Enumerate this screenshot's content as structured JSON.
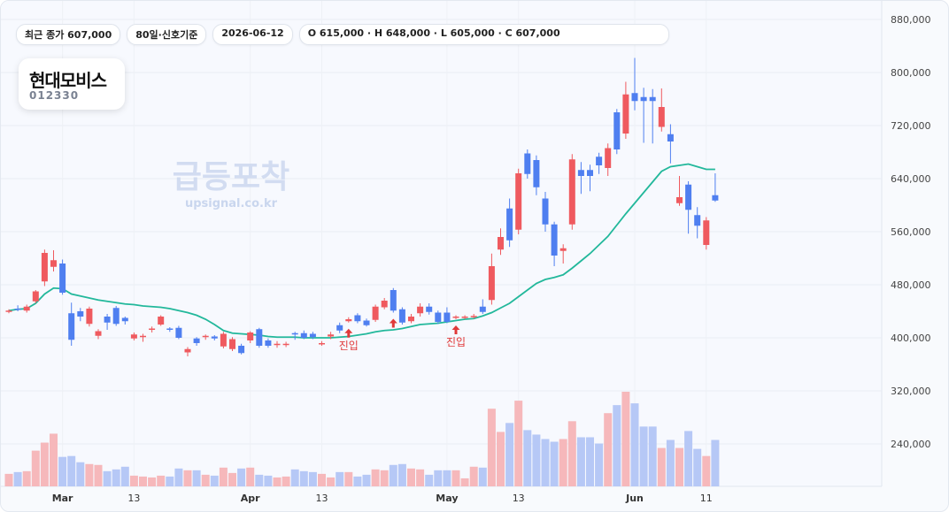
{
  "chips": [
    "최근 종가 607,000",
    "80일·신호기준",
    "2026-06-12",
    "O 615,000 · H 648,000 · L 605,000 · C 607,000"
  ],
  "title": "현대모비스",
  "code": "012330",
  "watermark": "급등포착",
  "watermark_sub": "upsignal.co.kr",
  "chart_data": {
    "type": "candlestick",
    "categories": [
      null,
      null,
      null,
      null,
      null,
      null,
      "Mar",
      null,
      null,
      null,
      null,
      null,
      null,
      null,
      "13",
      null,
      null,
      null,
      null,
      null,
      null,
      null,
      null,
      null,
      null,
      null,
      null,
      "Apr",
      null,
      null,
      null,
      null,
      null,
      null,
      null,
      "13",
      null,
      null,
      null,
      null,
      null,
      null,
      null,
      null,
      null,
      null,
      null,
      null,
      null,
      "May",
      null,
      null,
      null,
      null,
      null,
      null,
      null,
      "13",
      null,
      null,
      null,
      null,
      null,
      null,
      null,
      null,
      null,
      null,
      null,
      null,
      "Jun",
      null,
      null,
      null,
      null,
      null,
      null,
      null,
      "11",
      null
    ],
    "open": [
      439000,
      444000,
      441000,
      455000,
      485000,
      507000,
      512000,
      437000,
      440000,
      421000,
      403000,
      432000,
      445000,
      430000,
      399000,
      401000,
      412000,
      420000,
      414000,
      415000,
      378000,
      399000,
      401000,
      402000,
      387000,
      383000,
      388000,
      396000,
      413000,
      396000,
      389000,
      390000,
      407000,
      407000,
      406000,
      390000,
      402000,
      419000,
      425000,
      434000,
      426000,
      427000,
      446000,
      472000,
      443000,
      425000,
      437000,
      447000,
      438000,
      438000,
      430000,
      431000,
      431000,
      447000,
      457000,
      533000,
      595000,
      563000,
      678000,
      668000,
      610000,
      571000,
      531000,
      571000,
      653000,
      653000,
      673000,
      656000,
      740000,
      708000,
      769000,
      763000,
      763000,
      718000,
      707000,
      603000,
      631000,
      585000,
      540000,
      615000
    ],
    "high": [
      443000,
      449000,
      450000,
      472000,
      533000,
      532000,
      518000,
      453000,
      445000,
      447000,
      413000,
      436000,
      448000,
      432000,
      408000,
      406000,
      417000,
      434000,
      416000,
      418000,
      386000,
      401000,
      405000,
      404000,
      409000,
      401000,
      391000,
      410000,
      415000,
      399000,
      395000,
      394000,
      409000,
      411000,
      409000,
      395000,
      409000,
      423000,
      431000,
      437000,
      429000,
      450000,
      460000,
      475000,
      446000,
      436000,
      452000,
      452000,
      441000,
      446000,
      434000,
      434000,
      436000,
      458000,
      527000,
      565000,
      610000,
      655000,
      684000,
      675000,
      620000,
      575000,
      541000,
      677000,
      665000,
      661000,
      679000,
      693000,
      745000,
      786000,
      822000,
      777000,
      775000,
      776000,
      722000,
      644000,
      636000,
      597000,
      582000,
      648000
    ],
    "low": [
      437000,
      440000,
      438000,
      452000,
      478000,
      500000,
      465000,
      388000,
      425000,
      417000,
      398000,
      412000,
      418000,
      420000,
      396000,
      394000,
      408000,
      418000,
      409000,
      398000,
      372000,
      388000,
      397000,
      396000,
      384000,
      380000,
      375000,
      392000,
      385000,
      385000,
      385000,
      386000,
      397000,
      398000,
      398000,
      388000,
      398000,
      407000,
      423000,
      422000,
      417000,
      424000,
      443000,
      438000,
      420000,
      422000,
      432000,
      435000,
      421000,
      422000,
      428000,
      428000,
      429000,
      436000,
      450000,
      525000,
      537000,
      556000,
      640000,
      615000,
      560000,
      508000,
      512000,
      563000,
      617000,
      621000,
      647000,
      644000,
      677000,
      700000,
      743000,
      694000,
      693000,
      711000,
      663000,
      599000,
      557000,
      550000,
      533000,
      605000
    ],
    "close": [
      441000,
      443000,
      447000,
      470000,
      528000,
      517000,
      468000,
      397000,
      432000,
      444000,
      410000,
      423000,
      421000,
      425000,
      405000,
      403000,
      414000,
      432000,
      412000,
      400000,
      383000,
      392000,
      403000,
      399000,
      406000,
      398000,
      377000,
      408000,
      388000,
      388000,
      391000,
      391000,
      405000,
      400000,
      401000,
      392000,
      405000,
      411000,
      428000,
      425000,
      419000,
      447000,
      456000,
      441000,
      423000,
      432000,
      447000,
      439000,
      424000,
      424000,
      432000,
      432000,
      433000,
      439000,
      508000,
      552000,
      547000,
      648000,
      647000,
      627000,
      571000,
      524000,
      535000,
      669000,
      644000,
      644000,
      660000,
      686000,
      684000,
      767000,
      757000,
      757000,
      757000,
      748000,
      696000,
      612000,
      593000,
      569000,
      577000,
      607000
    ],
    "ma": [
      441000,
      443000,
      444000,
      452000,
      466000,
      475000,
      474000,
      466000,
      463000,
      460000,
      457000,
      455000,
      453000,
      451000,
      450000,
      448000,
      447000,
      446000,
      444000,
      441000,
      438000,
      434000,
      428000,
      420000,
      411000,
      407000,
      406000,
      405000,
      404000,
      402000,
      401000,
      401000,
      401000,
      400000,
      400000,
      400000,
      400000,
      401000,
      402000,
      404000,
      406000,
      409000,
      411000,
      412000,
      414000,
      417000,
      420000,
      421000,
      422000,
      424000,
      426000,
      428000,
      429000,
      433000,
      438000,
      445000,
      452000,
      462000,
      472000,
      482000,
      488000,
      491000,
      495000,
      505000,
      516000,
      527000,
      540000,
      553000,
      570000,
      587000,
      603000,
      619000,
      635000,
      651000,
      658000,
      660000,
      662000,
      658000,
      654000,
      654000
    ],
    "volume": [
      14,
      16,
      17,
      40,
      49,
      59,
      33,
      34,
      27,
      25,
      24,
      17,
      19,
      22,
      12,
      11,
      10,
      12,
      11,
      20,
      18,
      18,
      13,
      12,
      21,
      15,
      20,
      21,
      13,
      12,
      10,
      11,
      19,
      17,
      16,
      14,
      10,
      16,
      16,
      11,
      13,
      19,
      18,
      24,
      25,
      20,
      19,
      13,
      18,
      18,
      18,
      9,
      22,
      21,
      87,
      61,
      71,
      96,
      63,
      58,
      53,
      50,
      53,
      73,
      55,
      55,
      48,
      82,
      91,
      106,
      93,
      67,
      67,
      43,
      52,
      43,
      62,
      42,
      34,
      52
    ],
    "signals": [
      {
        "index": 38,
        "label": "진입"
      },
      {
        "index": 43
      },
      {
        "index": 50,
        "label": "진입"
      }
    ],
    "up_color": "#ef5a5f",
    "down_color": "#4f7ff0",
    "up_volume_color": "#f6b8bb",
    "down_volume_color": "#b6c8f6",
    "ma_color": "#22b89b",
    "signal_color": "#e03a3a",
    "ylim": [
      176000,
      888000
    ],
    "yticks": [
      {
        "value": 880000,
        "label": "880,000"
      },
      {
        "value": 800000,
        "label": "800,000"
      },
      {
        "value": 720000,
        "label": "720,000"
      },
      {
        "value": 640000,
        "label": "640,000"
      },
      {
        "value": 560000,
        "label": "560,000"
      },
      {
        "value": 480000,
        "label": "480,000"
      },
      {
        "value": 400000,
        "label": "400,000"
      },
      {
        "value": 320000,
        "label": "320,000"
      },
      {
        "value": 240000,
        "label": "240,000"
      }
    ],
    "grid": true
  }
}
